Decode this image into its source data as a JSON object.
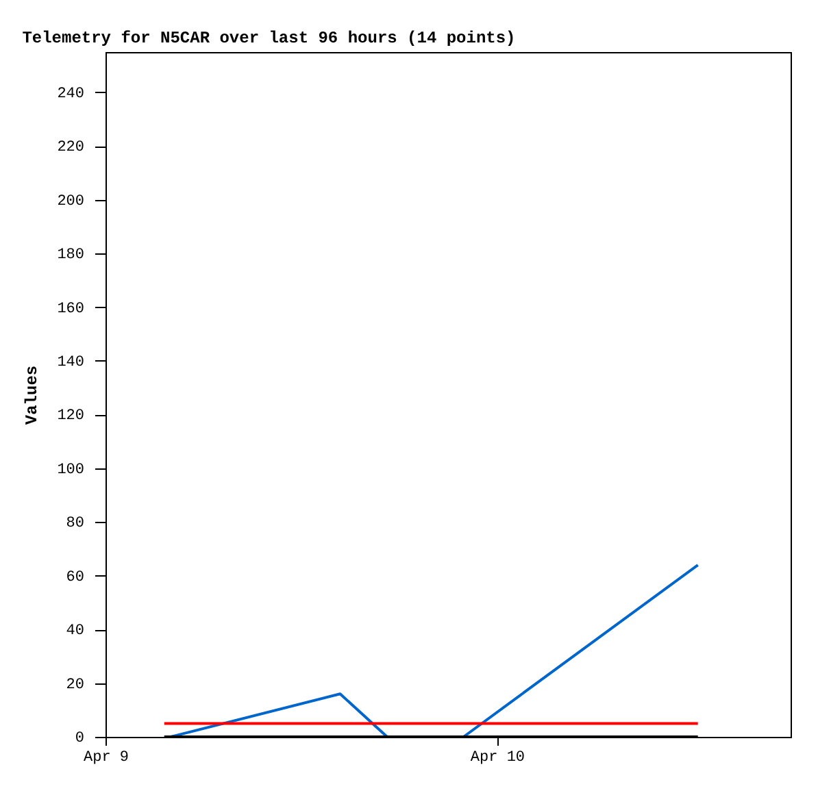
{
  "chart_data": {
    "type": "line",
    "title": "Telemetry for N5CAR over last 96 hours (14 points)",
    "ylabel": "Values",
    "xlim": [
      "--04-09T00:00",
      "--04-10T18:00"
    ],
    "xticks": [
      {
        "value": "--04-09T00:00",
        "label": "Apr 9"
      },
      {
        "value": "--04-10T00:00",
        "label": "Apr 10"
      }
    ],
    "ylim": [
      0,
      255
    ],
    "yticks": [
      0,
      20,
      40,
      60,
      80,
      100,
      120,
      140,
      160,
      180,
      200,
      220,
      240
    ],
    "grid": false,
    "series": [
      {
        "color": "#0066cc",
        "x": [
          "--04-09T04:00",
          "--04-09T14:23",
          "--04-09T17:16",
          "--04-09T21:57",
          "--04-10T12:19"
        ],
        "values": [
          0,
          16,
          0,
          0,
          64
        ]
      },
      {
        "color": "#ff0000",
        "x": [
          "--04-09T03:36",
          "--04-10T12:19"
        ],
        "values": [
          5,
          5
        ]
      },
      {
        "color": "#000000",
        "x": [
          "--04-09T03:36",
          "--04-10T12:19"
        ],
        "values": [
          0,
          0
        ]
      }
    ]
  }
}
